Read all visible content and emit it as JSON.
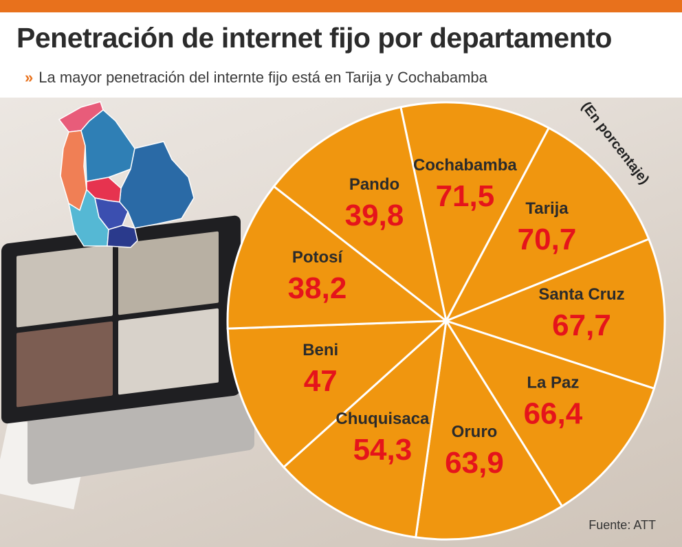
{
  "header": {
    "title": "Penetración de internet fijo por departamento",
    "subtitle_icon": "»",
    "subtitle": "La mayor penetración del internte fijo está en Tarija y Cochabamba"
  },
  "chart_data": {
    "type": "pie",
    "title": "Penetración de internet fijo por departamento",
    "unit_label": "(En porcentaje)",
    "categories": [
      "Cochabamba",
      "Tarija",
      "Santa Cruz",
      "La Paz",
      "Oruro",
      "Chuquisaca",
      "Beni",
      "Potosí",
      "Pando"
    ],
    "value_labels": [
      "71,5",
      "70,7",
      "67,7",
      "66,4",
      "63,9",
      "54,3",
      "47",
      "38,2",
      "39,8"
    ],
    "values": [
      71.5,
      70.7,
      67.7,
      66.4,
      63.9,
      54.3,
      47,
      38.2,
      39.8
    ],
    "slice_sizes": "equal",
    "source": "Fuente: ATT"
  },
  "colors": {
    "accent_bar": "#e8711c",
    "slice_fill": "#f0960f",
    "slice_stroke": "#ffffff",
    "category_text": "#2b2b2b",
    "value_text": "#e5141b",
    "chevron": "#e8711c"
  },
  "map_colors": [
    "#e85c7a",
    "#f07f55",
    "#2f7fb5",
    "#2a6aa6",
    "#e6334f",
    "#55b8d4",
    "#3b4fb0",
    "#2a3a8c"
  ]
}
